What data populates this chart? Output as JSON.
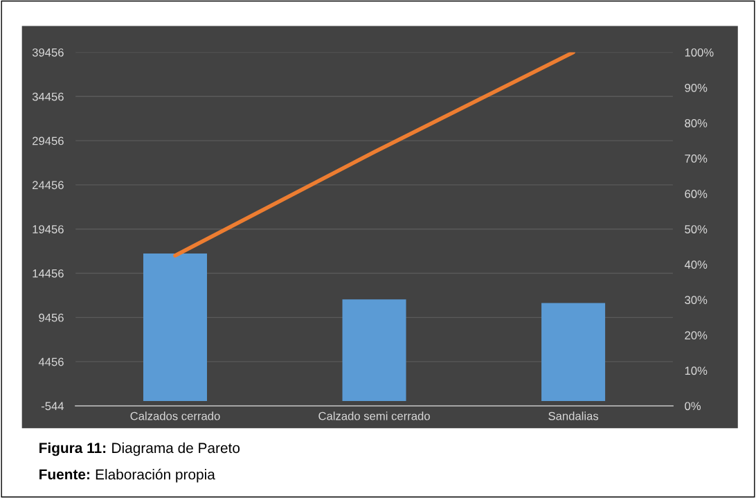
{
  "chart_data": {
    "type": "bar",
    "categories": [
      "Calzados cerrado",
      "Calzado semi cerrado",
      "Sandalias"
    ],
    "series": [
      {
        "color": "#5b9bd5",
        "values": [
          16700,
          11500,
          11100
        ]
      },
      {
        "type": "line",
        "axis": "y2",
        "color": "#ed7d31",
        "values": [
          42.5,
          71.8,
          100
        ]
      }
    ],
    "ylim": [
      -544,
      39456
    ],
    "yticks": [
      -544,
      4456,
      9456,
      14456,
      19456,
      24456,
      29456,
      34456,
      39456
    ],
    "y2lim": [
      0,
      100
    ],
    "y2ticks": [
      {
        "value": 0,
        "label": "0%"
      },
      {
        "value": 10,
        "label": "10%"
      },
      {
        "value": 20,
        "label": "20%"
      },
      {
        "value": 30,
        "label": "30%"
      },
      {
        "value": 40,
        "label": "40%"
      },
      {
        "value": 50,
        "label": "50%"
      },
      {
        "value": 60,
        "label": "60%"
      },
      {
        "value": 70,
        "label": "70%"
      },
      {
        "value": 80,
        "label": "80%"
      },
      {
        "value": 90,
        "label": "90%"
      },
      {
        "value": 100,
        "label": "100%"
      }
    ],
    "grid": "y",
    "marker": "none",
    "line_style": "solid",
    "annotations": [
      "Figura 11: Diagrama de Pareto",
      "Fuente: Elaboración propia"
    ]
  }
}
